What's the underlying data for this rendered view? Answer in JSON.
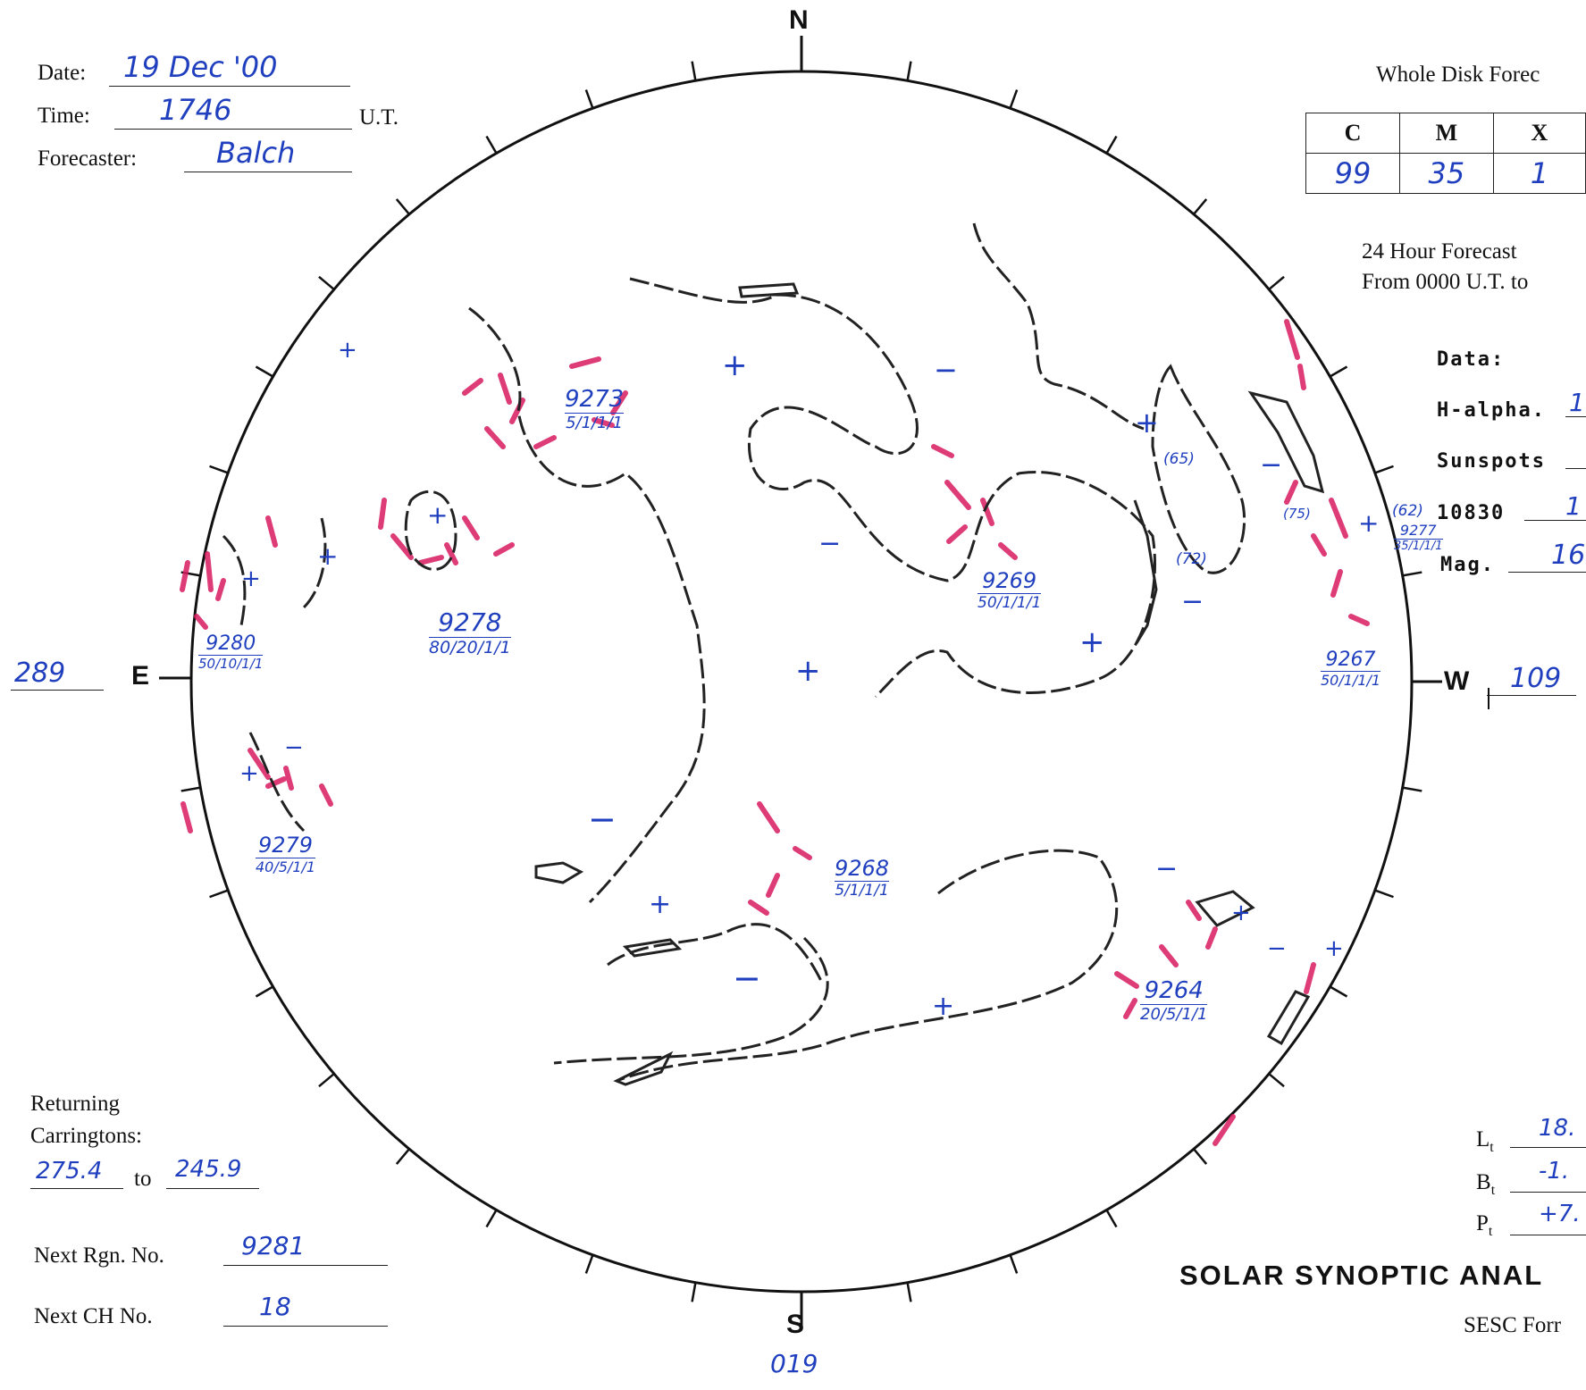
{
  "header": {
    "date_label": "Date:",
    "date_value": "19 Dec '00",
    "time_label": "Time:",
    "time_value": "1746",
    "time_unit": "U.T.",
    "forecaster_label": "Forecaster:",
    "forecaster_value": "Balch"
  },
  "forecast": {
    "title": "Whole Disk Forec",
    "columns": [
      "C",
      "M",
      "X"
    ],
    "values": [
      "99",
      "35",
      "1"
    ],
    "window_line1": "24 Hour Forecast",
    "window_line2": "From 0000 U.T. to"
  },
  "data_panel": {
    "heading": "Data:",
    "halpha_label": "H-alpha.",
    "halpha_value": "1",
    "sunspots_label": "Sunspots",
    "sunspots_value": "",
    "he10830_label": "10830",
    "he10830_value": "1",
    "mag_label": "Mag.",
    "mag_value": "16"
  },
  "compass": {
    "north": "N",
    "south": "S",
    "east": "E",
    "west": "W",
    "east_longitude": "289",
    "west_longitude": "109",
    "south_value": "019"
  },
  "regions": [
    {
      "number": "9273",
      "class": "5/1/1/1"
    },
    {
      "number": "9269",
      "class": "50/1/1/1"
    },
    {
      "number": "9278",
      "class": "80/20/1/1"
    },
    {
      "number": "9280",
      "class": "50/10/1/1"
    },
    {
      "number": "9267",
      "class": "50/1/1/1"
    },
    {
      "number": "9277",
      "class": "35/1/1/1"
    },
    {
      "number": "9279",
      "class": "40/5/1/1"
    },
    {
      "number": "9268",
      "class": "5/1/1/1"
    },
    {
      "number": "9264",
      "class": "20/5/1/1"
    }
  ],
  "disk_annotations": [
    "(65)",
    "(72)",
    "(75)",
    "(62)"
  ],
  "returning": {
    "label_line1": "Returning",
    "label_line2": "Carringtons:",
    "from": "275.4",
    "to_label": "to",
    "to": "245.9"
  },
  "next": {
    "rgn_label": "Next Rgn. No.",
    "rgn_value": "9281",
    "ch_label": "Next CH No.",
    "ch_value": "18"
  },
  "ephemeris": {
    "lt_label": "L",
    "lt_sub": "t",
    "lt_value": "18.",
    "bt_label": "B",
    "bt_sub": "t",
    "bt_value": "-1.",
    "pt_label": "P",
    "pt_sub": "t",
    "pt_value": "+7."
  },
  "footer": {
    "title": "SOLAR SYNOPTIC ANAL",
    "form": "SESC Forr"
  },
  "colors": {
    "ink": "#1f3fbf",
    "plage": "#d81b60",
    "pencil": "#222222"
  }
}
